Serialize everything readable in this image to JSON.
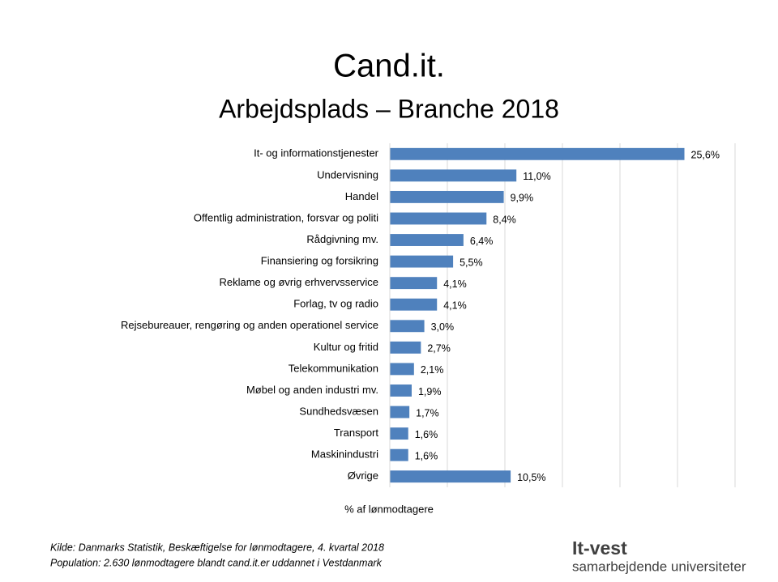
{
  "chart_data": {
    "type": "barh",
    "title": "Cand.it.",
    "subtitle": "Arbejdsplads – Branche 2018",
    "x_label": "% af lønmodtagere",
    "categories": [
      "It- og informationstjenester",
      "Undervisning",
      "Handel",
      "Offentlig administration, forsvar og politi",
      "Rådgivning mv.",
      "Finansiering og forsikring",
      "Reklame og øvrig erhvervsservice",
      "Forlag, tv og radio",
      "Rejsebureauer, rengøring og anden operationel service",
      "Kultur og fritid",
      "Telekommunikation",
      "Møbel og anden industri mv.",
      "Sundhedsvæsen",
      "Transport",
      "Maskinindustri",
      "Øvrige"
    ],
    "values": [
      25.6,
      11.0,
      9.9,
      8.4,
      6.4,
      5.5,
      4.1,
      4.1,
      3.0,
      2.7,
      2.1,
      1.9,
      1.7,
      1.6,
      1.6,
      10.5
    ],
    "value_labels": [
      "25,6%",
      "11,0%",
      "9,9%",
      "8,4%",
      "6,4%",
      "5,5%",
      "4,1%",
      "4,1%",
      "3,0%",
      "2,7%",
      "2,1%",
      "1,9%",
      "1,7%",
      "1,6%",
      "1,6%",
      "10,5%"
    ],
    "color": "#4f81bd",
    "xlim": [
      0,
      30
    ],
    "xticks": [
      0,
      5,
      10,
      15,
      20,
      25,
      30
    ],
    "grid": true,
    "notes": [
      "Kilde: Danmarks Statistik, Beskæftigelse for lønmodtagere, 4. kvartal 2018",
      "Population: 2.630 lønmodtagere blandt cand.it.er uddannet i Vestdanmark"
    ],
    "logo": {
      "name": "It-vest",
      "tagline": "samarbejdende universiteter"
    }
  }
}
